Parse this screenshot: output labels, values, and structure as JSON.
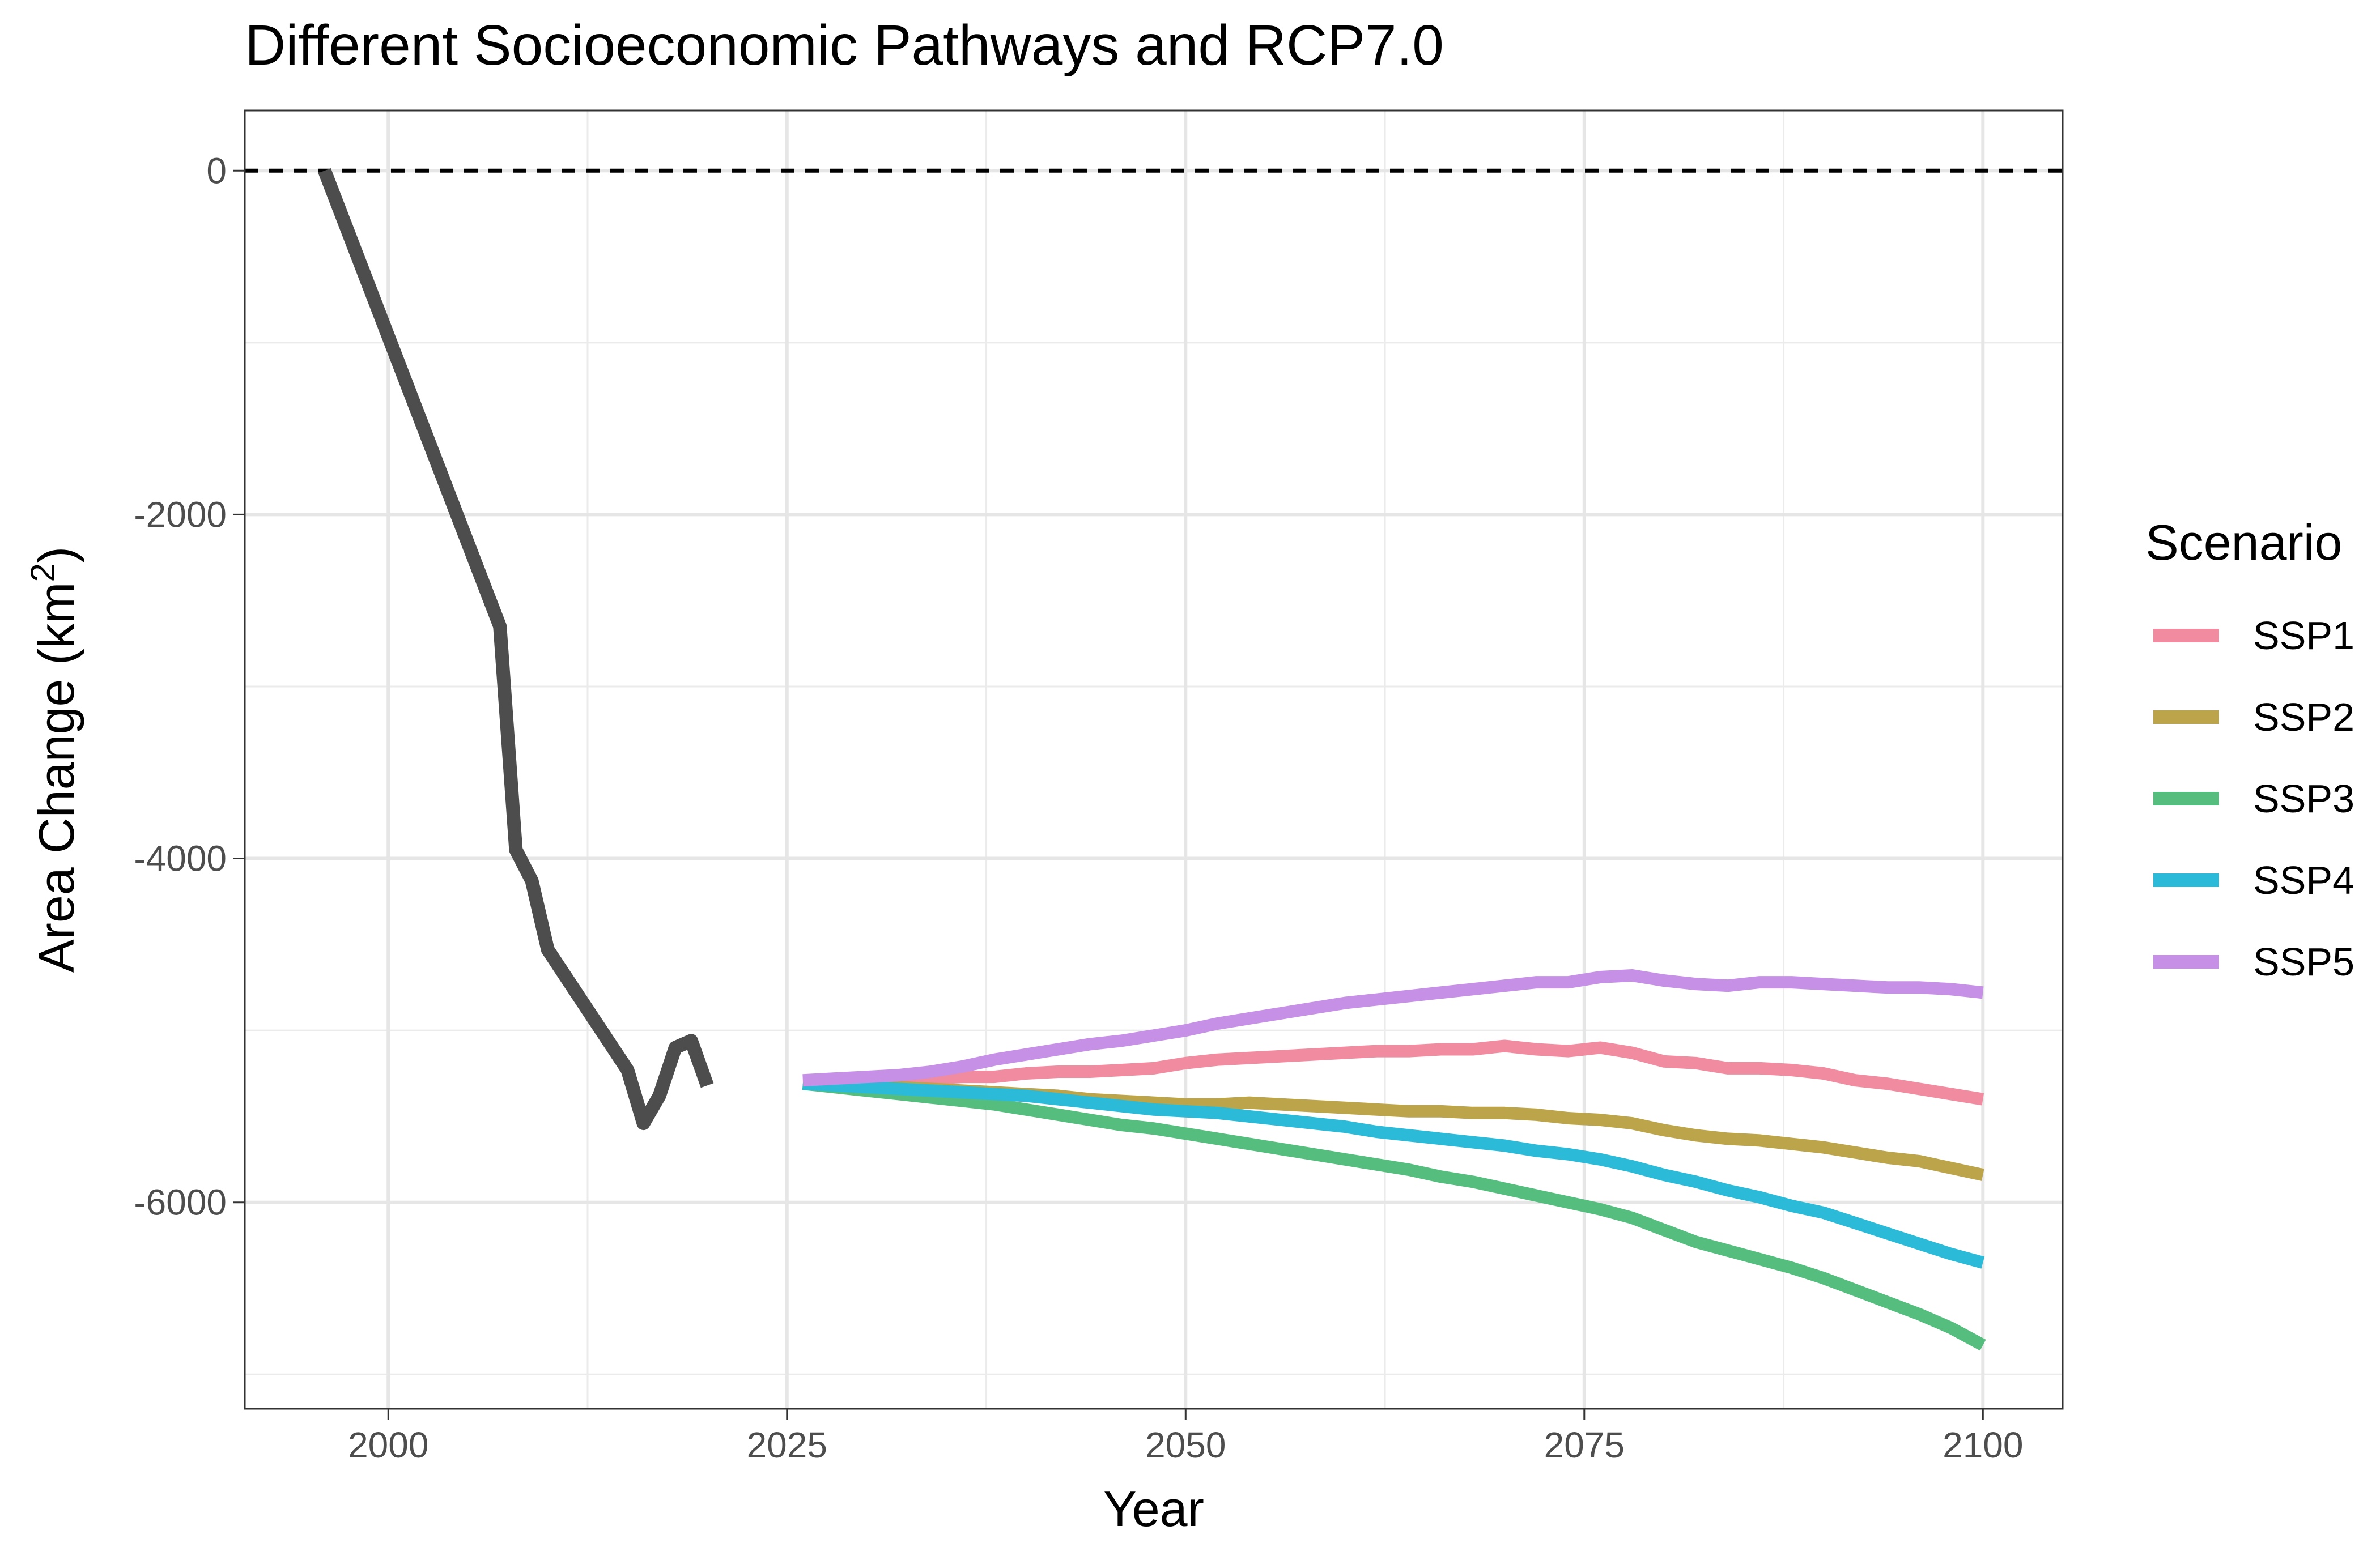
{
  "chart_data": {
    "type": "line",
    "title": "Different Socioeconomic Pathways and RCP7.0",
    "xlabel": "Year",
    "ylabel": {
      "main": "Area Change (km",
      "sup": "2",
      "close": ")"
    },
    "xlim": [
      1991,
      2105
    ],
    "ylim": [
      -7200,
      350
    ],
    "x_ticks": [
      2000,
      2025,
      2050,
      2075,
      2100
    ],
    "x_tick_labels": [
      "2000",
      "2025",
      "2050",
      "2075",
      "2100"
    ],
    "y_ticks": [
      0,
      -2000,
      -4000,
      -6000
    ],
    "y_tick_labels": [
      "0",
      "-2000",
      "-4000",
      "-6000"
    ],
    "x_minor": [
      2012.5,
      2037.5,
      2062.5,
      2087.5
    ],
    "y_minor": [
      -1000,
      -3000,
      -5000,
      -7000
    ],
    "grid": true,
    "reference_line": {
      "y": 0,
      "style": "dashed"
    },
    "legend": {
      "title": "Scenario",
      "position": "right"
    },
    "historical": {
      "color": "#4d4d4d",
      "x": [
        1996,
        2007,
        2008,
        2009,
        2010,
        2015,
        2016,
        2017,
        2018,
        2019,
        2020
      ],
      "y": [
        0,
        -2650,
        -3950,
        -4130,
        -4530,
        -5230,
        -5540,
        -5380,
        -5100,
        -5060,
        -5320
      ]
    },
    "series": [
      {
        "name": "SSP1",
        "color": "#F08BA0",
        "x": [
          2026,
          2028,
          2030,
          2032,
          2034,
          2036,
          2038,
          2040,
          2042,
          2044,
          2046,
          2048,
          2050,
          2052,
          2054,
          2056,
          2058,
          2060,
          2062,
          2064,
          2066,
          2068,
          2070,
          2072,
          2074,
          2076,
          2078,
          2080,
          2082,
          2084,
          2086,
          2088,
          2090,
          2092,
          2094,
          2096,
          2098,
          2100
        ],
        "y": [
          -5300,
          -5300,
          -5290,
          -5280,
          -5280,
          -5270,
          -5270,
          -5250,
          -5240,
          -5240,
          -5230,
          -5220,
          -5190,
          -5170,
          -5160,
          -5150,
          -5140,
          -5130,
          -5120,
          -5120,
          -5110,
          -5110,
          -5090,
          -5110,
          -5120,
          -5100,
          -5130,
          -5180,
          -5190,
          -5220,
          -5220,
          -5230,
          -5250,
          -5290,
          -5310,
          -5340,
          -5370,
          -5400
        ]
      },
      {
        "name": "SSP2",
        "color": "#BBA44A",
        "x": [
          2026,
          2028,
          2030,
          2032,
          2034,
          2036,
          2038,
          2040,
          2042,
          2044,
          2046,
          2048,
          2050,
          2052,
          2054,
          2056,
          2058,
          2060,
          2062,
          2064,
          2066,
          2068,
          2070,
          2072,
          2074,
          2076,
          2078,
          2080,
          2082,
          2084,
          2086,
          2088,
          2090,
          2092,
          2094,
          2096,
          2098,
          2100
        ],
        "y": [
          -5310,
          -5320,
          -5330,
          -5330,
          -5340,
          -5350,
          -5360,
          -5370,
          -5380,
          -5400,
          -5410,
          -5420,
          -5430,
          -5430,
          -5420,
          -5430,
          -5440,
          -5450,
          -5460,
          -5470,
          -5470,
          -5480,
          -5480,
          -5490,
          -5510,
          -5520,
          -5540,
          -5580,
          -5610,
          -5630,
          -5640,
          -5660,
          -5680,
          -5710,
          -5740,
          -5760,
          -5800,
          -5840
        ]
      },
      {
        "name": "SSP3",
        "color": "#55BE7E",
        "x": [
          2026,
          2028,
          2030,
          2032,
          2034,
          2036,
          2038,
          2040,
          2042,
          2044,
          2046,
          2048,
          2050,
          2052,
          2054,
          2056,
          2058,
          2060,
          2062,
          2064,
          2066,
          2068,
          2070,
          2072,
          2074,
          2076,
          2078,
          2080,
          2082,
          2084,
          2086,
          2088,
          2090,
          2092,
          2094,
          2096,
          2098,
          2100
        ],
        "y": [
          -5310,
          -5330,
          -5350,
          -5370,
          -5390,
          -5410,
          -5430,
          -5460,
          -5490,
          -5520,
          -5550,
          -5570,
          -5600,
          -5630,
          -5660,
          -5690,
          -5720,
          -5750,
          -5780,
          -5810,
          -5850,
          -5880,
          -5920,
          -5960,
          -6000,
          -6040,
          -6090,
          -6160,
          -6230,
          -6280,
          -6330,
          -6380,
          -6440,
          -6510,
          -6580,
          -6650,
          -6730,
          -6830
        ]
      },
      {
        "name": "SSP4",
        "color": "#2BBBD8",
        "x": [
          2026,
          2028,
          2030,
          2032,
          2034,
          2036,
          2038,
          2040,
          2042,
          2044,
          2046,
          2048,
          2050,
          2052,
          2054,
          2056,
          2058,
          2060,
          2062,
          2064,
          2066,
          2068,
          2070,
          2072,
          2074,
          2076,
          2078,
          2080,
          2082,
          2084,
          2086,
          2088,
          2090,
          2092,
          2094,
          2096,
          2098,
          2100
        ],
        "y": [
          -5310,
          -5320,
          -5330,
          -5340,
          -5350,
          -5360,
          -5370,
          -5380,
          -5400,
          -5420,
          -5440,
          -5460,
          -5470,
          -5480,
          -5500,
          -5520,
          -5540,
          -5560,
          -5590,
          -5610,
          -5630,
          -5650,
          -5670,
          -5700,
          -5720,
          -5750,
          -5790,
          -5840,
          -5880,
          -5930,
          -5970,
          -6020,
          -6060,
          -6120,
          -6180,
          -6240,
          -6300,
          -6350
        ]
      },
      {
        "name": "SSP5",
        "color": "#C590E6",
        "x": [
          2026,
          2028,
          2030,
          2032,
          2034,
          2036,
          2038,
          2040,
          2042,
          2044,
          2046,
          2048,
          2050,
          2052,
          2054,
          2056,
          2058,
          2060,
          2062,
          2064,
          2066,
          2068,
          2070,
          2072,
          2074,
          2076,
          2078,
          2080,
          2082,
          2084,
          2086,
          2088,
          2090,
          2092,
          2094,
          2096,
          2098,
          2100
        ],
        "y": [
          -5290,
          -5280,
          -5270,
          -5260,
          -5240,
          -5210,
          -5170,
          -5140,
          -5110,
          -5080,
          -5060,
          -5030,
          -5000,
          -4960,
          -4930,
          -4900,
          -4870,
          -4840,
          -4820,
          -4800,
          -4780,
          -4760,
          -4740,
          -4720,
          -4720,
          -4690,
          -4680,
          -4710,
          -4730,
          -4740,
          -4720,
          -4720,
          -4730,
          -4740,
          -4750,
          -4750,
          -4760,
          -4780
        ]
      }
    ]
  }
}
